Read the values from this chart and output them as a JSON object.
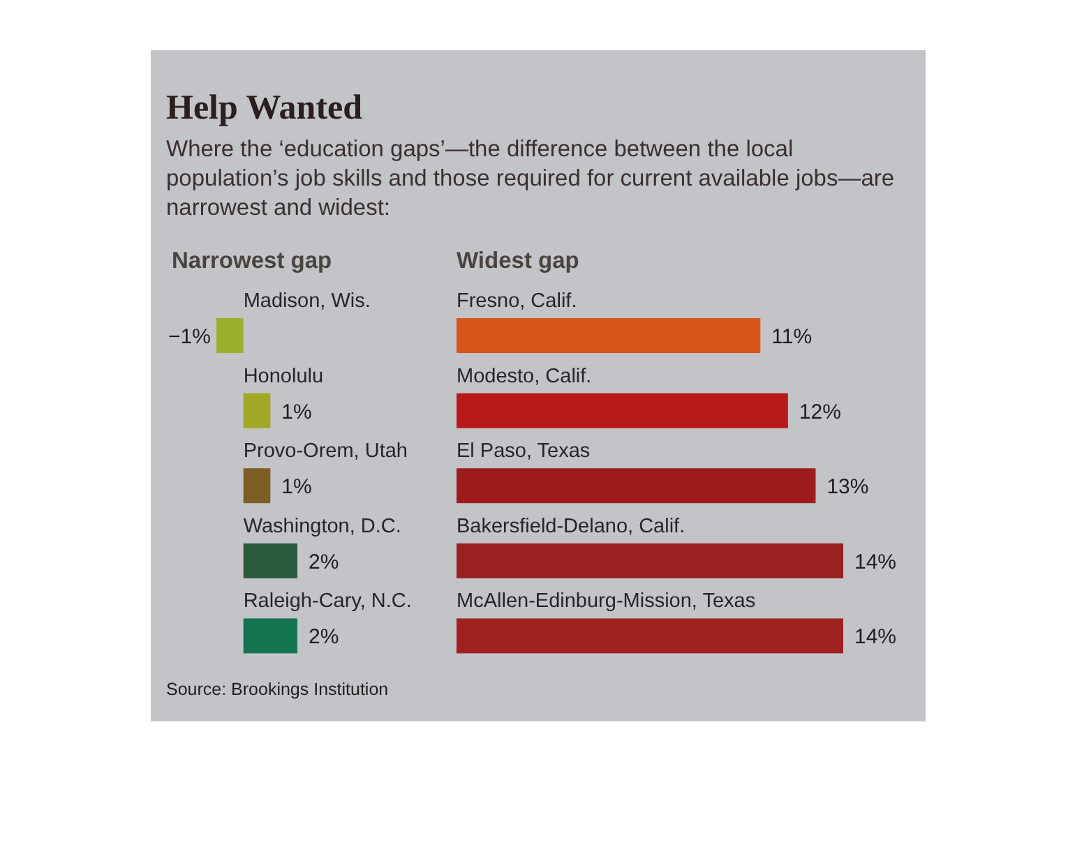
{
  "chart_data": [
    {
      "type": "other",
      "title": "Help Wanted",
      "subtitle": "Where the ‘education gaps’—the difference between the local population’s job skills and those required for current available jobs—are narrowest and widest:",
      "annotations": [
        "Source: Brookings Institution"
      ]
    },
    {
      "type": "bar",
      "orientation": "horizontal",
      "title": "Narrowest gap",
      "categories": [
        "Madison, Wis.",
        "Honolulu",
        "Provo-Orem, Utah",
        "Washington, D.C.",
        "Raleigh-Cary, N.C."
      ],
      "values": [
        -1,
        1,
        1,
        2,
        2
      ],
      "colors": [
        "#9bb02a",
        "#a0a825",
        "#7d5e25",
        "#2a5a3e",
        "#157550"
      ],
      "value_labels": [
        "−1%",
        "1%",
        "1%",
        "2%",
        "2%"
      ],
      "xlim": [
        -1,
        2
      ]
    },
    {
      "type": "bar",
      "orientation": "horizontal",
      "title": "Widest gap",
      "categories": [
        "Fresno, Calif.",
        "Modesto, Calif.",
        "El Paso, Texas",
        "Bakersfield-Delano, Calif.",
        "McAllen-Edinburg-Mission, Texas"
      ],
      "values": [
        11,
        12,
        13,
        14,
        14
      ],
      "colors": [
        "#d8551a",
        "#b81a1a",
        "#9c1c1c",
        "#98201e",
        "#9e2220"
      ],
      "value_labels": [
        "11%",
        "12%",
        "13%",
        "14%",
        "14%"
      ],
      "xlim": [
        0,
        14
      ]
    }
  ]
}
